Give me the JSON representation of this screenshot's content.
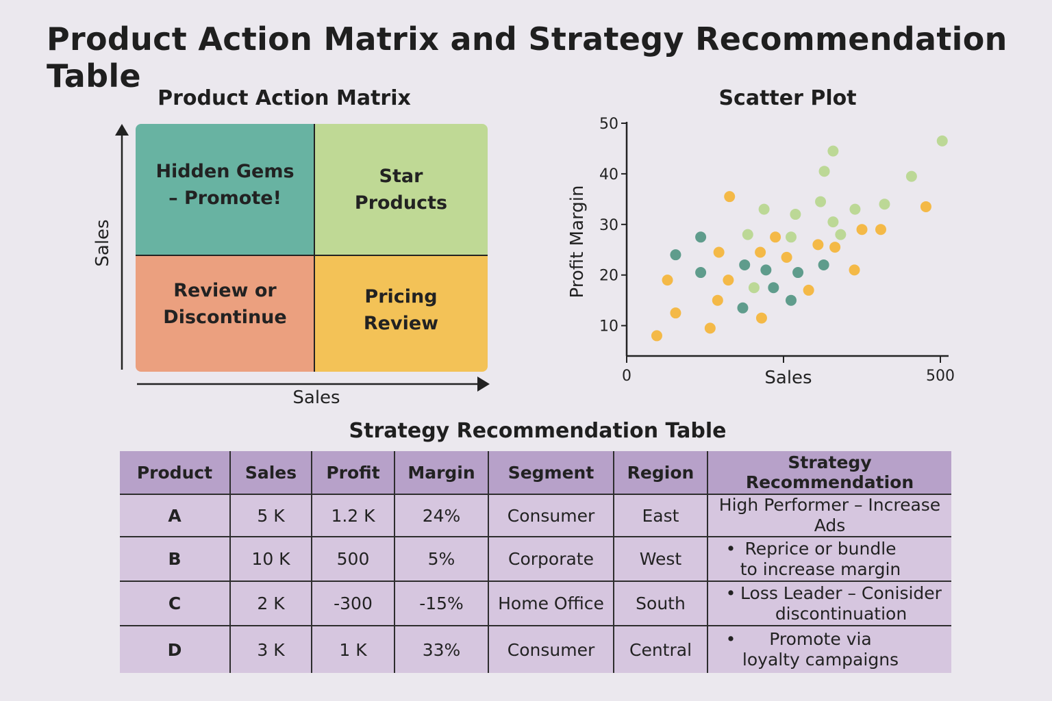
{
  "title": "Product Action Matrix and Strategy Recommendation Table",
  "colors": {
    "background": "#ebe8ee",
    "quadrant_hidden_gems": "#68b3a2",
    "quadrant_star": "#bfd995",
    "quadrant_review": "#eba07f",
    "quadrant_pricing": "#f3c257",
    "dot_teal": "#5f9c8c",
    "dot_green": "#bcd896",
    "dot_orange": "#f4b947",
    "table_header": "#b7a1c9",
    "table_cell": "#d6c6df"
  },
  "matrix": {
    "title": "Product Action Matrix",
    "quadrants": {
      "top_left": "Hidden Gems – Promote!",
      "top_right": "Star Products",
      "bottom_left": "Review or Discontinue",
      "bottom_right": "Pricing Review"
    },
    "xlabel": "Sales",
    "ylabel": "Sales"
  },
  "chart_data": {
    "type": "scatter",
    "title": "Scatter Plot",
    "xlabel": "Sales",
    "ylabel": "Profit Margin",
    "xlim": [
      0,
      500
    ],
    "ylim": [
      4,
      50
    ],
    "x_ticks": [
      0,
      500
    ],
    "y_ticks": [
      10,
      20,
      30,
      40,
      50
    ],
    "grid": false,
    "series": [
      {
        "color": "#5f9c8c",
        "points": [
          [
            78,
            24
          ],
          [
            118,
            27.5
          ],
          [
            118,
            20.5
          ],
          [
            185,
            13.5
          ],
          [
            188,
            22
          ],
          [
            222,
            21
          ],
          [
            234,
            17.5
          ],
          [
            262,
            15
          ],
          [
            273,
            20.5
          ],
          [
            314,
            22
          ]
        ]
      },
      {
        "color": "#bcd896",
        "points": [
          [
            193,
            28
          ],
          [
            203,
            17.5
          ],
          [
            219,
            33
          ],
          [
            262,
            27.5
          ],
          [
            269,
            32
          ],
          [
            309,
            34.5
          ],
          [
            315,
            40.5
          ],
          [
            329,
            44.5
          ],
          [
            329,
            30.5
          ],
          [
            341,
            28
          ],
          [
            364,
            33
          ],
          [
            411,
            34
          ],
          [
            454,
            39.5
          ],
          [
            503,
            46.5
          ]
        ]
      },
      {
        "color": "#f4b947",
        "points": [
          [
            48,
            8
          ],
          [
            65,
            19
          ],
          [
            78,
            12.5
          ],
          [
            133,
            9.5
          ],
          [
            145,
            15
          ],
          [
            147,
            24.5
          ],
          [
            162,
            19
          ],
          [
            164,
            35.5
          ],
          [
            215,
            11.5
          ],
          [
            213,
            24.5
          ],
          [
            237,
            27.5
          ],
          [
            255,
            23.5
          ],
          [
            290,
            17
          ],
          [
            305,
            26
          ],
          [
            332,
            25.5
          ],
          [
            363,
            21
          ],
          [
            375,
            29
          ],
          [
            405,
            29
          ],
          [
            477,
            33.5
          ]
        ]
      }
    ]
  },
  "table": {
    "title": "Strategy Recommendation Table",
    "headers": [
      "Product",
      "Sales",
      "Profit",
      "Margin",
      "Segment",
      "Region",
      "Strategy Recommendation"
    ],
    "rows": [
      {
        "product": "A",
        "sales": "5 K",
        "profit": "1.2 K",
        "margin": "24%",
        "segment": "Consumer",
        "region": "East",
        "strategy": "High Performer – Increase Ads",
        "bullet": ""
      },
      {
        "product": "B",
        "sales": "10 K",
        "profit": "500",
        "margin": "5%",
        "segment": "Corporate",
        "region": "West",
        "strategy": "Reprice or bundle to increase margin",
        "bullet": "•"
      },
      {
        "product": "C",
        "sales": "2 K",
        "profit": "-300",
        "margin": "-15%",
        "segment": "Home Office",
        "region": "South",
        "strategy": "Loss Leader – Conisider discontinuation",
        "bullet": "•"
      },
      {
        "product": "D",
        "sales": "3 K",
        "profit": "1 K",
        "margin": "33%",
        "segment": "Consumer",
        "region": "Central",
        "strategy": "Promote via loyalty campaigns",
        "bullet": "•"
      }
    ]
  }
}
